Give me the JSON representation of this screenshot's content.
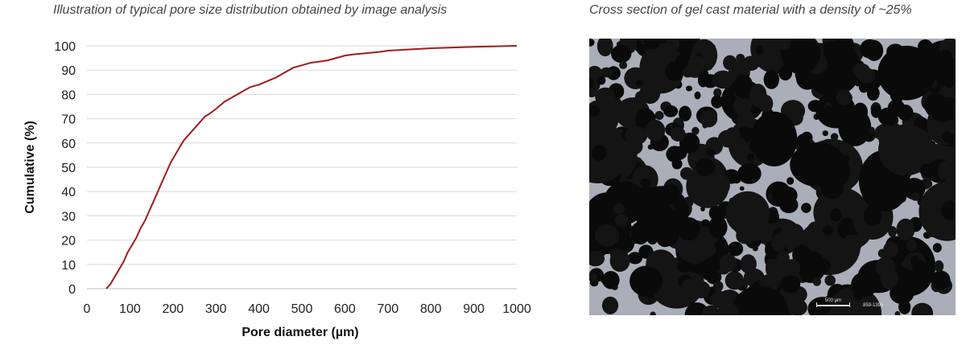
{
  "captions": {
    "chart": "Illustration of typical pore size distribution obtained by image analysis",
    "image": "Cross section of gel cast material with a density of ~25%"
  },
  "micrograph": {
    "scale_bar_label": "500 µm",
    "sample_id": "859-1395"
  },
  "colors": {
    "series_line": "#a01c1c",
    "gridline": "#d9d9d9",
    "micrograph_background": "#0b0b0b",
    "micrograph_matrix": "#a9aeb8"
  },
  "chart_data": {
    "type": "line",
    "title": "",
    "xlabel": "Pore diameter (µm)",
    "ylabel": "Cumulative (%)",
    "xlim": [
      0,
      1000
    ],
    "ylim": [
      0,
      100
    ],
    "xticks": [
      0,
      100,
      200,
      300,
      400,
      500,
      600,
      700,
      800,
      900,
      1000
    ],
    "yticks": [
      0,
      10,
      20,
      30,
      40,
      50,
      60,
      70,
      80,
      90,
      100
    ],
    "grid": "horizontal",
    "legend": "none",
    "series": [
      {
        "x": [
          45,
          55,
          65,
          75,
          85,
          95,
          105,
          115,
          125,
          135,
          145,
          155,
          165,
          175,
          185,
          195,
          205,
          215,
          225,
          235,
          245,
          255,
          265,
          275,
          285,
          300,
          320,
          340,
          360,
          380,
          400,
          420,
          440,
          460,
          480,
          500,
          520,
          540,
          560,
          580,
          600,
          620,
          650,
          680,
          700,
          750,
          800,
          850,
          900,
          950,
          1000
        ],
        "y": [
          0,
          2,
          5,
          8,
          11,
          15,
          18,
          21,
          25,
          28,
          32,
          36,
          40,
          44,
          48,
          52,
          55,
          58,
          61,
          63,
          65,
          67,
          69,
          71,
          72,
          74,
          77,
          79,
          81,
          83,
          84,
          85.5,
          87,
          89,
          91,
          92,
          93,
          93.5,
          94,
          95,
          96,
          96.5,
          97,
          97.5,
          98,
          98.5,
          99,
          99.3,
          99.6,
          99.8,
          100
        ]
      }
    ]
  }
}
